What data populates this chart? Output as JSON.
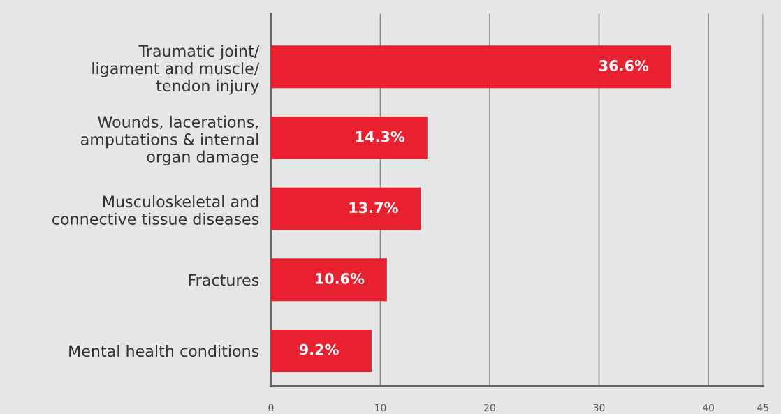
{
  "chart_data": {
    "type": "bar",
    "orientation": "horizontal",
    "categories": [
      "Traumatic joint/\nligament and muscle/\ntendon injury",
      "Wounds, lacerations,\namputations & internal\norgan damage",
      "Musculoskeletal and\nconnective tissue diseases",
      "Fractures",
      "Mental health conditions"
    ],
    "values": [
      36.6,
      14.3,
      13.7,
      10.6,
      9.2
    ],
    "value_labels": [
      "36.6%",
      "14.3%",
      "13.7%",
      "10.6%",
      "9.2%"
    ],
    "color": "#e8202f",
    "xlim": [
      0,
      45
    ],
    "xticks": [
      0,
      10,
      20,
      30,
      40,
      45
    ],
    "grid": "x"
  }
}
